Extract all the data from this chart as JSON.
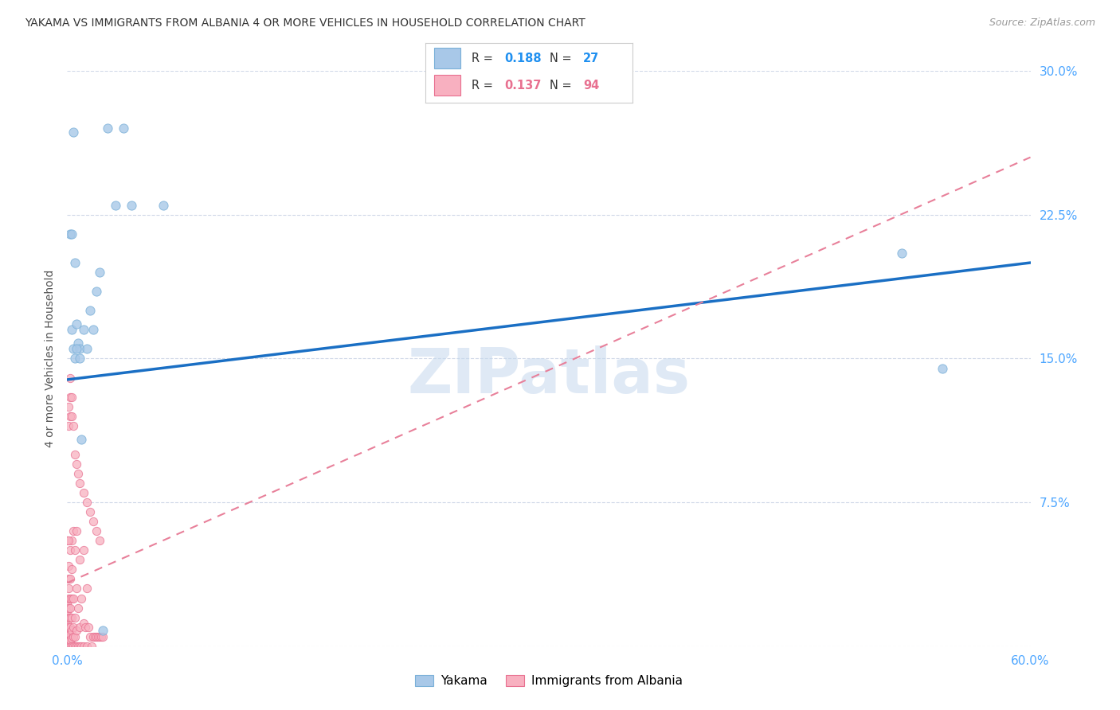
{
  "title": "YAKAMA VS IMMIGRANTS FROM ALBANIA 4 OR MORE VEHICLES IN HOUSEHOLD CORRELATION CHART",
  "source": "Source: ZipAtlas.com",
  "ylabel": "4 or more Vehicles in Household",
  "xlim": [
    0.0,
    0.6
  ],
  "ylim": [
    0.0,
    0.3
  ],
  "xticks": [
    0.0,
    0.1,
    0.2,
    0.3,
    0.4,
    0.5,
    0.6
  ],
  "yticks": [
    0.0,
    0.075,
    0.15,
    0.225,
    0.3
  ],
  "xticklabels": [
    "0.0%",
    "",
    "",
    "",
    "",
    "",
    "60.0%"
  ],
  "yticklabels": [
    "",
    "7.5%",
    "15.0%",
    "22.5%",
    "30.0%"
  ],
  "watermark": "ZIPatlas",
  "R_yakama": 0.188,
  "N_yakama": 27,
  "R_albania": 0.137,
  "N_albania": 94,
  "color_yakama": "#a8c8e8",
  "color_albania": "#f8b0c0",
  "edge_yakama": "#7ab0d8",
  "edge_albania": "#e87090",
  "line_color_yakama": "#1a6fc4",
  "line_color_albania": "#e8809a",
  "background_color": "#ffffff",
  "grid_color": "#d0d8e8",
  "legend_text_color": "#333333",
  "stat_color_yakama": "#2090f0",
  "stat_color_albania": "#e87090",
  "tick_color": "#4da6ff",
  "ylabel_color": "#555555",
  "title_color": "#333333",
  "source_color": "#999999",
  "yakama_x": [
    0.002,
    0.003,
    0.004,
    0.005,
    0.005,
    0.006,
    0.007,
    0.008,
    0.009,
    0.01,
    0.012,
    0.014,
    0.016,
    0.018,
    0.02,
    0.025,
    0.03,
    0.035,
    0.04,
    0.06,
    0.52,
    0.545,
    0.022,
    0.003,
    0.004,
    0.006,
    0.008
  ],
  "yakama_y": [
    0.215,
    0.165,
    0.155,
    0.2,
    0.15,
    0.168,
    0.158,
    0.155,
    0.108,
    0.165,
    0.155,
    0.175,
    0.165,
    0.185,
    0.195,
    0.27,
    0.23,
    0.27,
    0.23,
    0.23,
    0.205,
    0.145,
    0.008,
    0.215,
    0.268,
    0.155,
    0.15
  ],
  "albania_x": [
    0.0,
    0.0,
    0.0,
    0.0,
    0.0,
    0.0,
    0.0,
    0.0,
    0.0,
    0.0,
    0.001,
    0.001,
    0.001,
    0.001,
    0.001,
    0.001,
    0.001,
    0.001,
    0.001,
    0.001,
    0.001,
    0.001,
    0.002,
    0.002,
    0.002,
    0.002,
    0.002,
    0.002,
    0.002,
    0.002,
    0.002,
    0.003,
    0.003,
    0.003,
    0.003,
    0.003,
    0.003,
    0.003,
    0.004,
    0.004,
    0.004,
    0.004,
    0.004,
    0.005,
    0.005,
    0.005,
    0.005,
    0.006,
    0.006,
    0.006,
    0.006,
    0.007,
    0.007,
    0.008,
    0.008,
    0.008,
    0.009,
    0.009,
    0.01,
    0.01,
    0.01,
    0.011,
    0.012,
    0.012,
    0.013,
    0.014,
    0.015,
    0.016,
    0.017,
    0.018,
    0.019,
    0.02,
    0.021,
    0.022,
    0.0,
    0.001,
    0.001,
    0.002,
    0.002,
    0.003,
    0.003,
    0.004,
    0.005,
    0.006,
    0.007,
    0.008,
    0.01,
    0.012,
    0.014,
    0.016,
    0.018,
    0.02,
    0.001,
    0.002
  ],
  "albania_y": [
    0.0,
    0.002,
    0.004,
    0.006,
    0.008,
    0.01,
    0.012,
    0.015,
    0.018,
    0.022,
    0.0,
    0.002,
    0.004,
    0.006,
    0.008,
    0.01,
    0.015,
    0.02,
    0.025,
    0.03,
    0.035,
    0.042,
    0.0,
    0.003,
    0.006,
    0.01,
    0.015,
    0.02,
    0.025,
    0.035,
    0.05,
    0.0,
    0.004,
    0.008,
    0.015,
    0.025,
    0.04,
    0.055,
    0.0,
    0.005,
    0.01,
    0.025,
    0.06,
    0.0,
    0.005,
    0.015,
    0.05,
    0.0,
    0.008,
    0.03,
    0.06,
    0.0,
    0.02,
    0.0,
    0.01,
    0.045,
    0.0,
    0.025,
    0.0,
    0.012,
    0.05,
    0.01,
    0.0,
    0.03,
    0.01,
    0.005,
    0.0,
    0.005,
    0.005,
    0.005,
    0.005,
    0.005,
    0.005,
    0.005,
    0.055,
    0.055,
    0.115,
    0.12,
    0.13,
    0.12,
    0.13,
    0.115,
    0.1,
    0.095,
    0.09,
    0.085,
    0.08,
    0.075,
    0.07,
    0.065,
    0.06,
    0.055,
    0.125,
    0.14
  ],
  "line_yakama_x0": 0.0,
  "line_yakama_y0": 0.139,
  "line_yakama_x1": 0.6,
  "line_yakama_y1": 0.2,
  "line_albania_x0": 0.0,
  "line_albania_y0": 0.033,
  "line_albania_x1": 0.6,
  "line_albania_y1": 0.255
}
